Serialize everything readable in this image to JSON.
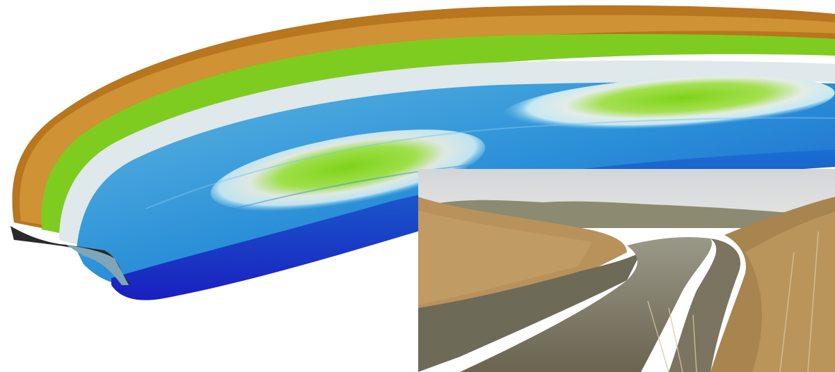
{
  "scene": {
    "terrain_model": {
      "description_key": "3d-bathymetric-terrain",
      "colors": {
        "bank_brown": "#9a5a1c",
        "bank_orange": "#c8841e",
        "shoal_green": "#7fd21a",
        "shelf_white": "#e8f4f8",
        "channel_cyan": "#2aa6d8",
        "channel_blue": "#1a6fd0",
        "deep_blue": "#1a1fbf"
      }
    },
    "photo": {
      "colors": {
        "sky": "#d9dcdf",
        "reeds": "#b8925a",
        "reeds_dark": "#8a6a3a",
        "mud": "#6e6a58",
        "water": "#7f7a66",
        "treeline": "#8c8a70"
      }
    }
  }
}
